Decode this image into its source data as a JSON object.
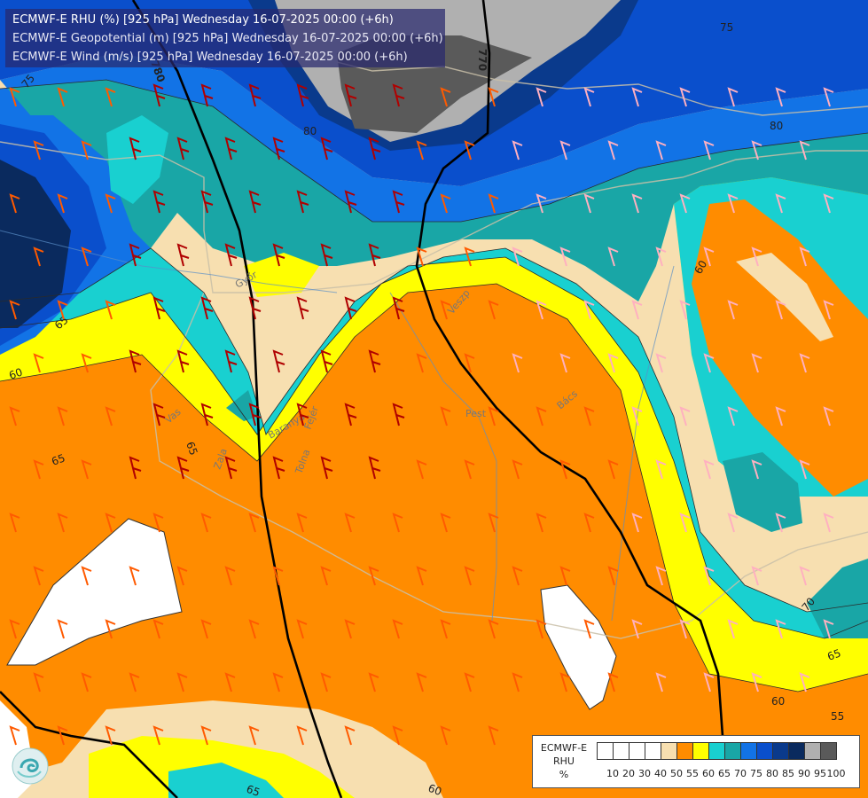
{
  "titles": [
    "ECMWF-E RHU (%) [925 hPa] Wednesday 16-07-2025 00:00 (+6h)",
    "ECMWF-E Geopotential (m) [925 hPa] Wednesday 16-07-2025 00:00 (+6h)",
    "ECMWF-E Wind (m/s) [925 hPa] Wednesday 16-07-2025 00:00 (+6h)"
  ],
  "legend": {
    "title_lines": [
      "ECMWF-E",
      "RHU",
      "%"
    ],
    "tick_labels": [
      "10",
      "20",
      "30",
      "40",
      "50",
      "55",
      "60",
      "65",
      "70",
      "75",
      "80",
      "85",
      "90",
      "95",
      "100"
    ],
    "colors": [
      "#ffffff",
      "#ffffff",
      "#ffffff",
      "#ffffff",
      "#f7dfb0",
      "#ff8c00",
      "#ffff00",
      "#19d0d0",
      "#19a6a6",
      "#1273e6",
      "#0a4fcc",
      "#0a3a8c",
      "#0a2a5e",
      "#b0b0b0",
      "#5a5a5a"
    ]
  },
  "map_labels": {
    "contour_labels": [
      "75",
      "80",
      "80",
      "75",
      "60",
      "65",
      "60",
      "65",
      "65",
      "70",
      "65",
      "60",
      "55",
      "60",
      "65"
    ],
    "geopotential_labels": [
      "780",
      "770"
    ],
    "place_labels": [
      "Pest",
      "Bács",
      "Veszp",
      "Fejér",
      "Tolna",
      "Zala",
      "Vas",
      "Baranya",
      "Győr"
    ]
  },
  "colors": {
    "rhu_60": "#ff8c00",
    "rhu_65": "#ffff00",
    "rhu_70": "#19d0d0",
    "rhu_75": "#19a6a6",
    "rhu_80": "#1273e6",
    "rhu_85": "#0a4fcc",
    "rhu_90": "#0a3a8c",
    "rhu_95": "#b0b0b0",
    "rhu_100": "#5a5a5a",
    "rhu_55": "#f7dfb0",
    "wind_strong": "#b00000",
    "wind_med": "#ff5a00",
    "wind_weak": "#ffb0c0"
  }
}
